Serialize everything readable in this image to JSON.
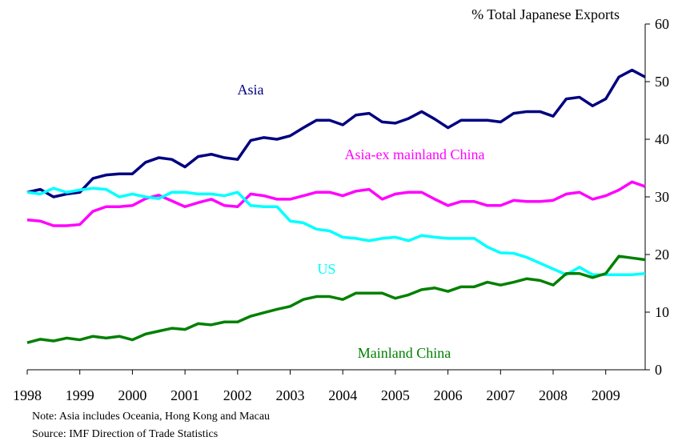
{
  "chart_data": {
    "type": "line",
    "y_label": "% Total Japanese Exports",
    "notes": [
      "Note: Asia includes Oceania, Hong Kong and Macau",
      "Source: IMF Direction of Trade Statistics"
    ],
    "x": [
      1998,
      1998.25,
      1998.5,
      1998.75,
      1999,
      1999.25,
      1999.5,
      1999.75,
      2000,
      2000.25,
      2000.5,
      2000.75,
      2001,
      2001.25,
      2001.5,
      2001.75,
      2002,
      2002.25,
      2002.5,
      2002.75,
      2003,
      2003.25,
      2003.5,
      2003.75,
      2004,
      2004.25,
      2004.5,
      2004.75,
      2005,
      2005.25,
      2005.5,
      2005.75,
      2006,
      2006.25,
      2006.5,
      2006.75,
      2007,
      2007.25,
      2007.5,
      2007.75,
      2008,
      2008.25,
      2008.5,
      2008.75,
      2009,
      2009.25,
      2009.5,
      2009.75
    ],
    "xlim": [
      1998,
      2009.75
    ],
    "xticks": [
      1998,
      1999,
      2000,
      2001,
      2002,
      2003,
      2004,
      2005,
      2006,
      2007,
      2008,
      2009
    ],
    "ylim": [
      0,
      60
    ],
    "yticks": [
      0,
      10,
      20,
      30,
      40,
      50,
      60
    ],
    "series": [
      {
        "name": "Asia",
        "color": "#000080",
        "values": [
          30.8,
          31.3,
          30,
          30.5,
          30.8,
          33.2,
          33.8,
          34,
          34,
          36,
          36.8,
          36.5,
          35.2,
          37,
          37.4,
          36.8,
          36.5,
          39.8,
          40.3,
          40,
          40.6,
          42,
          43.3,
          43.3,
          42.5,
          44.2,
          44.5,
          43,
          42.8,
          43.6,
          44.8,
          43.5,
          42,
          43.3,
          43.3,
          43.3,
          43,
          44.5,
          44.8,
          44.8,
          44,
          47,
          47.3,
          45.8,
          47,
          50.8,
          52,
          50.8
        ]
      },
      {
        "name": "Asia-ex mainland China",
        "color": "#ff00ff",
        "values": [
          26,
          25.8,
          25,
          25,
          25.2,
          27.5,
          28.3,
          28.3,
          28.5,
          29.7,
          30.3,
          29.3,
          28.3,
          29,
          29.6,
          28.5,
          28.3,
          30.5,
          30.2,
          29.6,
          29.6,
          30.2,
          30.8,
          30.8,
          30.2,
          31,
          31.3,
          29.6,
          30.5,
          30.8,
          30.8,
          29.6,
          28.5,
          29.2,
          29.2,
          28.5,
          28.5,
          29.4,
          29.2,
          29.2,
          29.4,
          30.5,
          30.8,
          29.6,
          30.2,
          31.2,
          32.6,
          31.8
        ]
      },
      {
        "name": "US",
        "color": "#00ffff",
        "values": [
          30.8,
          30.5,
          31.5,
          30.8,
          31.2,
          31.5,
          31.3,
          30,
          30.5,
          30,
          29.7,
          30.8,
          30.8,
          30.5,
          30.5,
          30.2,
          30.8,
          28.5,
          28.3,
          28.3,
          25.8,
          25.5,
          24.4,
          24.1,
          23,
          22.8,
          22.4,
          22.8,
          23,
          22.4,
          23.3,
          23,
          22.8,
          22.8,
          22.8,
          21.3,
          20.3,
          20.2,
          19.5,
          18.5,
          17.5,
          16.5,
          17.8,
          16.5,
          16.5,
          16.5,
          16.5,
          16.7
        ]
      },
      {
        "name": "Mainland China",
        "color": "#008000",
        "values": [
          4.7,
          5.3,
          5,
          5.5,
          5.2,
          5.8,
          5.5,
          5.8,
          5.2,
          6.2,
          6.7,
          7.2,
          7,
          8,
          7.8,
          8.3,
          8.3,
          9.3,
          9.9,
          10.5,
          11,
          12.2,
          12.7,
          12.7,
          12.2,
          13.3,
          13.3,
          13.3,
          12.4,
          13,
          13.9,
          14.2,
          13.6,
          14.4,
          14.4,
          15.2,
          14.7,
          15.2,
          15.8,
          15.5,
          14.7,
          16.7,
          16.7,
          16,
          16.7,
          19.7,
          19.4,
          19.1
        ]
      }
    ]
  }
}
